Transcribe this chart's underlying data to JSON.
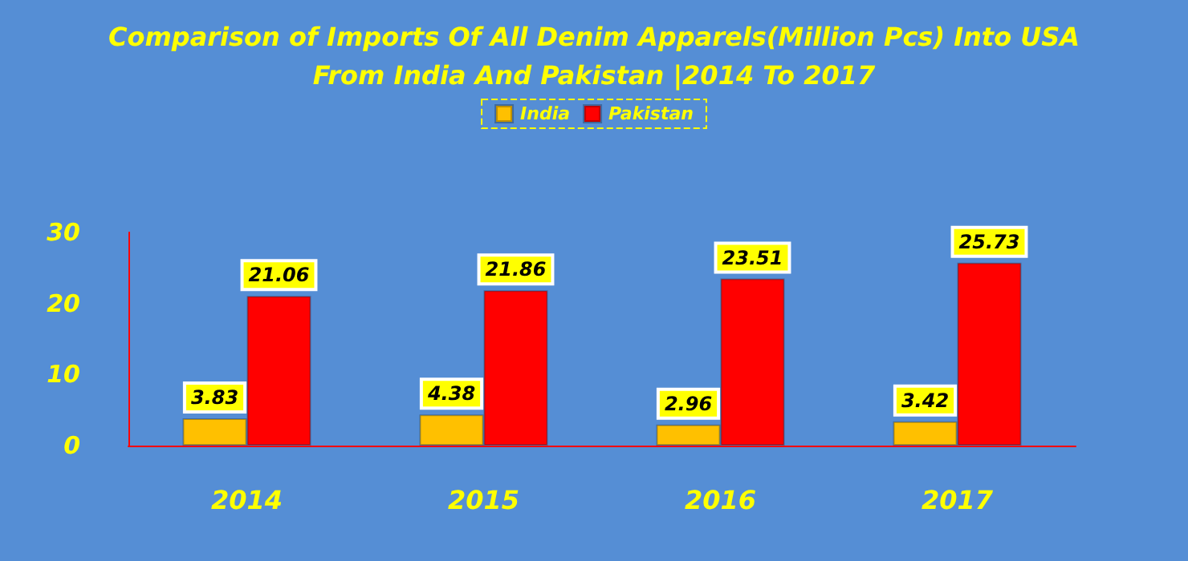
{
  "chart_data": {
    "type": "bar",
    "title": "Comparison of Imports Of All Denim Apparels(Million Pcs) Into USA\nFrom India And Pakistan |2014 To 2017",
    "categories": [
      "2014",
      "2015",
      "2016",
      "2017"
    ],
    "series": [
      {
        "name": "India",
        "color": "#ffc000",
        "values": [
          3.83,
          4.38,
          2.96,
          3.42
        ]
      },
      {
        "name": "Pakistan",
        "color": "#ff0000",
        "values": [
          21.06,
          21.86,
          23.51,
          25.73
        ]
      }
    ],
    "ylim": [
      0,
      30
    ],
    "yticks": [
      0,
      10,
      20,
      30
    ],
    "grid": false,
    "legend": "top",
    "data_labels": true
  }
}
